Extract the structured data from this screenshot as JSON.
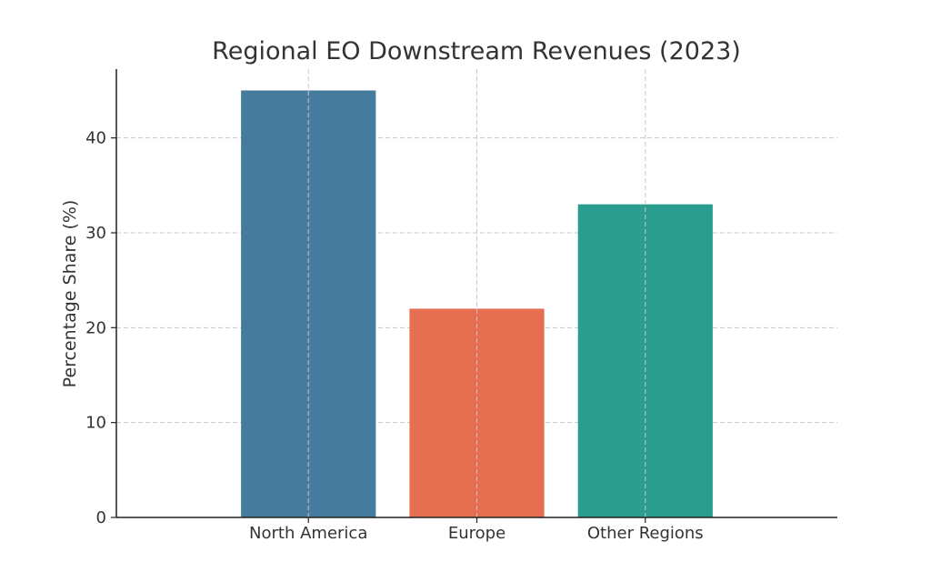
{
  "chart_data": {
    "type": "bar",
    "title": "Regional EO Downstream Revenues (2023)",
    "xlabel": "",
    "ylabel": "Percentage Share (%)",
    "categories": [
      "North America",
      "Europe",
      "Other Regions"
    ],
    "values": [
      45,
      22,
      33
    ],
    "colors": [
      "#457b9d",
      "#e76f51",
      "#2a9d8f"
    ],
    "ylim": [
      0,
      47.25
    ],
    "yticks": [
      0,
      10,
      20,
      30,
      40
    ],
    "grid": true,
    "legend": "none"
  }
}
